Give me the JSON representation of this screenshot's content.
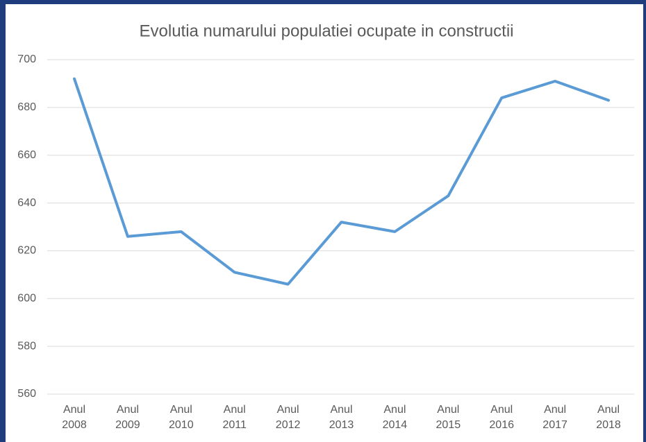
{
  "chart_data": {
    "type": "line",
    "title": "Evolutia numarului populatiei ocupate in constructii",
    "categories": [
      "Anul 2008",
      "Anul 2009",
      "Anul 2010",
      "Anul 2011",
      "Anul 2012",
      "Anul 2013",
      "Anul 2014",
      "Anul 2015",
      "Anul 2016",
      "Anul 2017",
      "Anul 2018"
    ],
    "values": [
      692,
      626,
      628,
      611,
      606,
      632,
      628,
      643,
      684,
      691,
      683
    ],
    "color": "#5b9bd5",
    "ylim": [
      560,
      700
    ],
    "yticks": [
      560,
      580,
      600,
      620,
      640,
      660,
      680,
      700
    ],
    "grid": true
  }
}
